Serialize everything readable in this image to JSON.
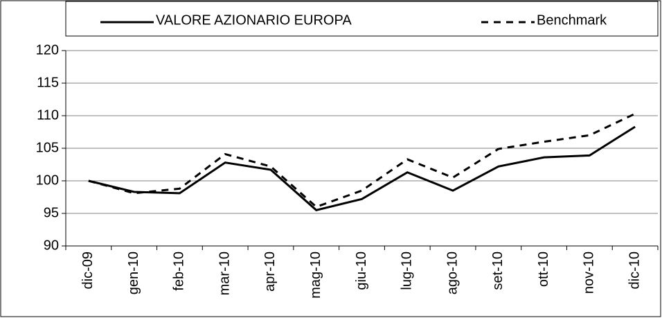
{
  "chart_data": {
    "type": "line",
    "categories": [
      "dic-09",
      "gen-10",
      "feb-10",
      "mar-10",
      "apr-10",
      "mag-10",
      "giu-10",
      "lug-10",
      "ago-10",
      "set-10",
      "ott-10",
      "nov-10",
      "dic-10"
    ],
    "series": [
      {
        "name": "VALORE AZIONARIO EUROPA",
        "color": "#000000",
        "dash": "solid",
        "values": [
          100,
          98.3,
          98.1,
          102.8,
          101.7,
          95.5,
          97.2,
          101.3,
          98.5,
          102.2,
          103.6,
          103.9,
          108.3
        ]
      },
      {
        "name": "Benchmark",
        "color": "#000000",
        "dash": "dashed",
        "values": [
          100,
          98.1,
          98.8,
          104.1,
          102.2,
          96.0,
          98.5,
          103.3,
          100.5,
          104.9,
          106.0,
          107.0,
          110.3
        ]
      }
    ],
    "ylim": [
      90,
      120
    ],
    "yticks": [
      90,
      95,
      100,
      105,
      110,
      115,
      120
    ],
    "grid": true,
    "legend": "top"
  }
}
